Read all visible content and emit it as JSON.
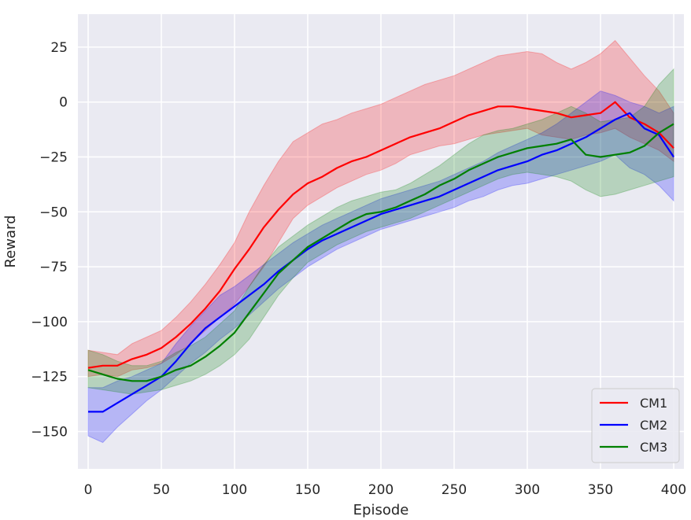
{
  "chart_data": {
    "type": "line",
    "xlabel": "Episode",
    "ylabel": "Reward",
    "xlim": [
      -7,
      407
    ],
    "ylim": [
      -167,
      40
    ],
    "xticks": [
      0,
      50,
      100,
      150,
      200,
      250,
      300,
      350,
      400
    ],
    "yticks": [
      25,
      0,
      -25,
      -50,
      -75,
      -100,
      -125,
      -150
    ],
    "grid": true,
    "legend_position": "bottom-right",
    "colors": {
      "background": "#eaeaf2",
      "grid": "#ffffff",
      "CM1": "#ff0000",
      "CM2": "#0000ff",
      "CM3": "#008000"
    },
    "series": [
      {
        "name": "CM1",
        "color": "#ff0000",
        "x": [
          0,
          10,
          20,
          30,
          40,
          50,
          60,
          70,
          80,
          90,
          100,
          110,
          120,
          130,
          140,
          150,
          160,
          170,
          180,
          190,
          200,
          210,
          220,
          230,
          240,
          250,
          260,
          270,
          280,
          290,
          300,
          310,
          320,
          330,
          340,
          350,
          360,
          370,
          380,
          390,
          400
        ],
        "mean": [
          -121,
          -120,
          -120,
          -117,
          -115,
          -112,
          -107,
          -101,
          -94,
          -86,
          -76,
          -67,
          -57,
          -49,
          -42,
          -37,
          -34,
          -30,
          -27,
          -25,
          -22,
          -19,
          -16,
          -14,
          -12,
          -9,
          -6,
          -4,
          -2,
          -2,
          -3,
          -4,
          -5,
          -7,
          -6,
          -5,
          0,
          -7,
          -10,
          -14,
          -21
        ],
        "lower": [
          -125,
          -124,
          -125,
          -122,
          -121,
          -119,
          -115,
          -110,
          -104,
          -98,
          -92,
          -84,
          -75,
          -64,
          -53,
          -47,
          -43,
          -39,
          -36,
          -33,
          -31,
          -28,
          -24,
          -22,
          -20,
          -19,
          -17,
          -15,
          -14,
          -13,
          -12,
          -15,
          -16,
          -17,
          -15,
          -14,
          -12,
          -16,
          -19,
          -22,
          -27
        ],
        "upper": [
          -113,
          -114,
          -115,
          -110,
          -107,
          -104,
          -98,
          -91,
          -83,
          -74,
          -64,
          -50,
          -38,
          -27,
          -18,
          -14,
          -10,
          -8,
          -5,
          -3,
          -1,
          2,
          5,
          8,
          10,
          12,
          15,
          18,
          21,
          22,
          23,
          22,
          18,
          15,
          18,
          22,
          28,
          20,
          12,
          5,
          -5
        ]
      },
      {
        "name": "CM2",
        "color": "#0000ff",
        "x": [
          0,
          10,
          20,
          30,
          40,
          50,
          60,
          70,
          80,
          90,
          100,
          110,
          120,
          130,
          140,
          150,
          160,
          170,
          180,
          190,
          200,
          210,
          220,
          230,
          240,
          250,
          260,
          270,
          280,
          290,
          300,
          310,
          320,
          330,
          340,
          350,
          360,
          370,
          380,
          390,
          400
        ],
        "mean": [
          -141,
          -141,
          -137,
          -133,
          -129,
          -125,
          -118,
          -110,
          -103,
          -98,
          -93,
          -88,
          -83,
          -77,
          -72,
          -67,
          -63,
          -60,
          -57,
          -54,
          -51,
          -49,
          -47,
          -45,
          -43,
          -40,
          -37,
          -34,
          -31,
          -29,
          -27,
          -24,
          -22,
          -19,
          -16,
          -12,
          -8,
          -5,
          -12,
          -15,
          -25
        ],
        "lower": [
          -152,
          -155,
          -148,
          -142,
          -136,
          -131,
          -125,
          -119,
          -114,
          -108,
          -103,
          -97,
          -91,
          -85,
          -80,
          -75,
          -71,
          -67,
          -64,
          -61,
          -58,
          -56,
          -54,
          -52,
          -50,
          -48,
          -45,
          -43,
          -40,
          -38,
          -37,
          -35,
          -33,
          -31,
          -29,
          -27,
          -24,
          -30,
          -33,
          -38,
          -45
        ],
        "upper": [
          -130,
          -130,
          -127,
          -125,
          -122,
          -119,
          -110,
          -102,
          -95,
          -88,
          -84,
          -79,
          -74,
          -69,
          -64,
          -60,
          -56,
          -53,
          -50,
          -47,
          -44,
          -42,
          -40,
          -38,
          -36,
          -33,
          -30,
          -27,
          -23,
          -20,
          -17,
          -14,
          -10,
          -5,
          0,
          5,
          3,
          0,
          -2,
          -5,
          -2
        ]
      },
      {
        "name": "CM3",
        "color": "#008000",
        "x": [
          0,
          10,
          20,
          30,
          40,
          50,
          60,
          70,
          80,
          90,
          100,
          110,
          120,
          130,
          140,
          150,
          160,
          170,
          180,
          190,
          200,
          210,
          220,
          230,
          240,
          250,
          260,
          270,
          280,
          290,
          300,
          310,
          320,
          330,
          340,
          350,
          360,
          370,
          380,
          390,
          400
        ],
        "mean": [
          -122,
          -124,
          -126,
          -127,
          -127,
          -125,
          -122,
          -120,
          -116,
          -111,
          -105,
          -96,
          -87,
          -78,
          -72,
          -66,
          -62,
          -58,
          -54,
          -51,
          -50,
          -48,
          -45,
          -42,
          -38,
          -35,
          -31,
          -28,
          -25,
          -23,
          -21,
          -20,
          -19,
          -17,
          -24,
          -25,
          -24,
          -23,
          -20,
          -14,
          -10
        ],
        "lower": [
          -130,
          -131,
          -132,
          -133,
          -132,
          -131,
          -129,
          -127,
          -124,
          -120,
          -115,
          -108,
          -98,
          -88,
          -80,
          -73,
          -69,
          -65,
          -62,
          -59,
          -57,
          -55,
          -53,
          -50,
          -47,
          -44,
          -41,
          -38,
          -35,
          -33,
          -32,
          -33,
          -34,
          -36,
          -40,
          -43,
          -42,
          -40,
          -38,
          -36,
          -34
        ],
        "upper": [
          -113,
          -115,
          -118,
          -120,
          -120,
          -118,
          -114,
          -111,
          -107,
          -101,
          -95,
          -84,
          -74,
          -66,
          -61,
          -56,
          -52,
          -48,
          -45,
          -43,
          -41,
          -40,
          -37,
          -33,
          -29,
          -24,
          -19,
          -15,
          -13,
          -12,
          -10,
          -8,
          -5,
          -2,
          -5,
          -9,
          -8,
          -7,
          -2,
          8,
          15
        ]
      }
    ]
  }
}
